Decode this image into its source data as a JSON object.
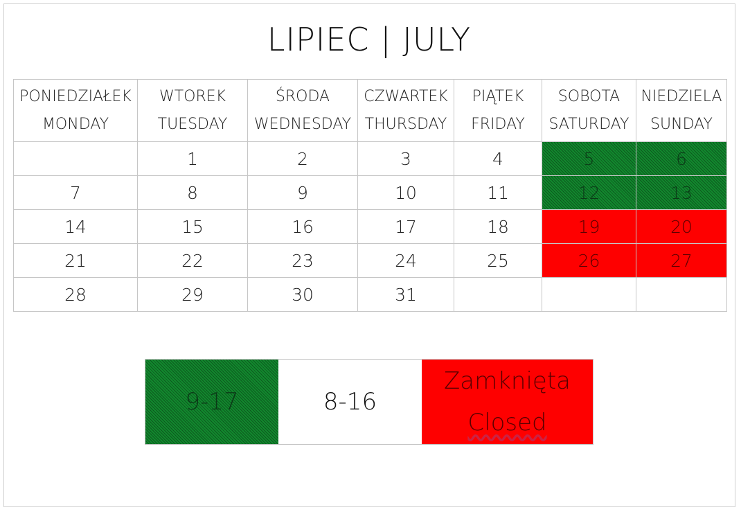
{
  "title": "LIPIEC | JULY",
  "days": [
    {
      "pl": "PONIEDZIAŁEK",
      "en": "MONDAY"
    },
    {
      "pl": "WTOREK",
      "en": "TUESDAY"
    },
    {
      "pl": "ŚRODA",
      "en": "WEDNESDAY"
    },
    {
      "pl": "CZWARTEK",
      "en": "THURSDAY"
    },
    {
      "pl": "PIĄTEK",
      "en": "FRIDAY"
    },
    {
      "pl": "SOBOTA",
      "en": "SATURDAY"
    },
    {
      "pl": "NIEDZIELA",
      "en": "SUNDAY"
    }
  ],
  "weeks": [
    [
      "",
      "1",
      "2",
      "3",
      "4",
      "5",
      "6"
    ],
    [
      "7",
      "8",
      "9",
      "10",
      "11",
      "12",
      "13"
    ],
    [
      "14",
      "15",
      "16",
      "17",
      "18",
      "19",
      "20"
    ],
    [
      "21",
      "22",
      "23",
      "24",
      "25",
      "26",
      "27"
    ],
    [
      "28",
      "29",
      "30",
      "31",
      "",
      "",
      ""
    ]
  ],
  "status": [
    [
      "",
      "",
      "",
      "",
      "",
      "green",
      "green"
    ],
    [
      "",
      "",
      "",
      "",
      "",
      "green",
      "green"
    ],
    [
      "",
      "",
      "",
      "",
      "",
      "red",
      "red"
    ],
    [
      "",
      "",
      "",
      "",
      "",
      "red",
      "red"
    ],
    [
      "",
      "",
      "",
      "",
      "",
      "",
      ""
    ]
  ],
  "colors": {
    "green": "#12882e",
    "red": "#fe0000"
  },
  "legend": {
    "green_hours": "9-17",
    "white_hours": "8-16",
    "closed_pl": "Zamknięta",
    "closed_en": "Closed"
  }
}
